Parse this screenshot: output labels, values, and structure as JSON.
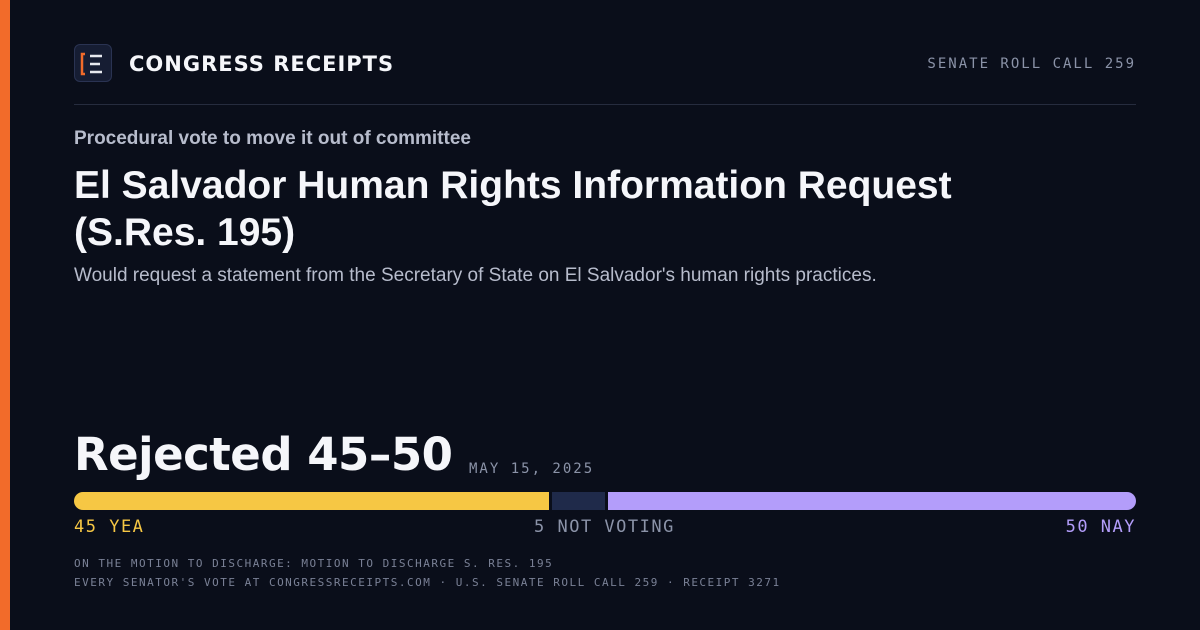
{
  "brand": {
    "name": "CONGRESS RECEIPTS",
    "logo_icon": "bracket-e-logo-icon",
    "accent_color": "#f26b2a"
  },
  "header": {
    "roll_call": "SENATE ROLL CALL 259"
  },
  "vote": {
    "kicker": "Procedural vote to move it out of committee",
    "title": "El Salvador Human Rights Information Request (S.Res. 195)",
    "description": "Would request a statement from the Secretary of State on El Salvador's human rights practices.",
    "result": "Rejected 45–50",
    "date": "MAY 15, 2025",
    "tally": {
      "yea": 45,
      "not_voting": 5,
      "nay": 50,
      "yea_label": "45 YEA",
      "not_voting_label": "5 NOT VOTING",
      "nay_label": "50 NAY",
      "colors": {
        "yea": "#f6c744",
        "not_voting": "#1f2a4a",
        "nay": "#b39dfa"
      }
    }
  },
  "footer": {
    "line1": "ON THE MOTION TO DISCHARGE: MOTION TO DISCHARGE S. RES. 195",
    "line2": "EVERY SENATOR'S VOTE AT CONGRESSRECEIPTS.COM · U.S. SENATE ROLL CALL 259 · RECEIPT 3271"
  }
}
